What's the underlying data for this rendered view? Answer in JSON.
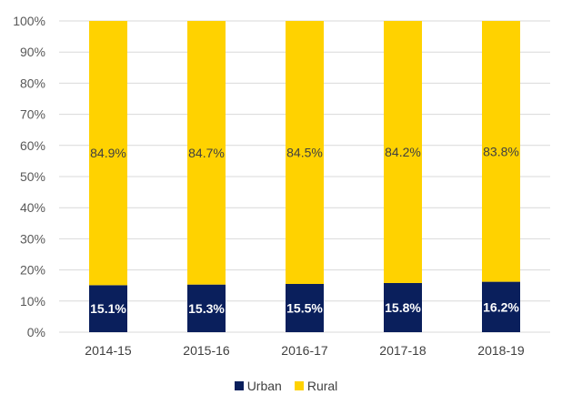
{
  "chart_data": {
    "type": "bar",
    "stacked": true,
    "categories": [
      "2014-15",
      "2015-16",
      "2016-17",
      "2017-18",
      "2018-19"
    ],
    "series": [
      {
        "name": "Urban",
        "values": [
          15.1,
          15.3,
          15.5,
          15.8,
          16.2
        ],
        "labels": [
          "15.1%",
          "15.3%",
          "15.5%",
          "15.8%",
          "16.2%"
        ],
        "color": "#0a1f5c"
      },
      {
        "name": "Rural",
        "values": [
          84.9,
          84.7,
          84.5,
          84.2,
          83.8
        ],
        "labels": [
          "84.9%",
          "84.7%",
          "84.5%",
          "84.2%",
          "83.8%"
        ],
        "color": "#ffd200"
      }
    ],
    "y_ticks": [
      "0%",
      "10%",
      "20%",
      "30%",
      "40%",
      "50%",
      "60%",
      "70%",
      "80%",
      "90%",
      "100%"
    ],
    "ylim": [
      0,
      100
    ],
    "grid": true,
    "legend_position": "bottom",
    "title": "",
    "xlabel": "",
    "ylabel": ""
  }
}
